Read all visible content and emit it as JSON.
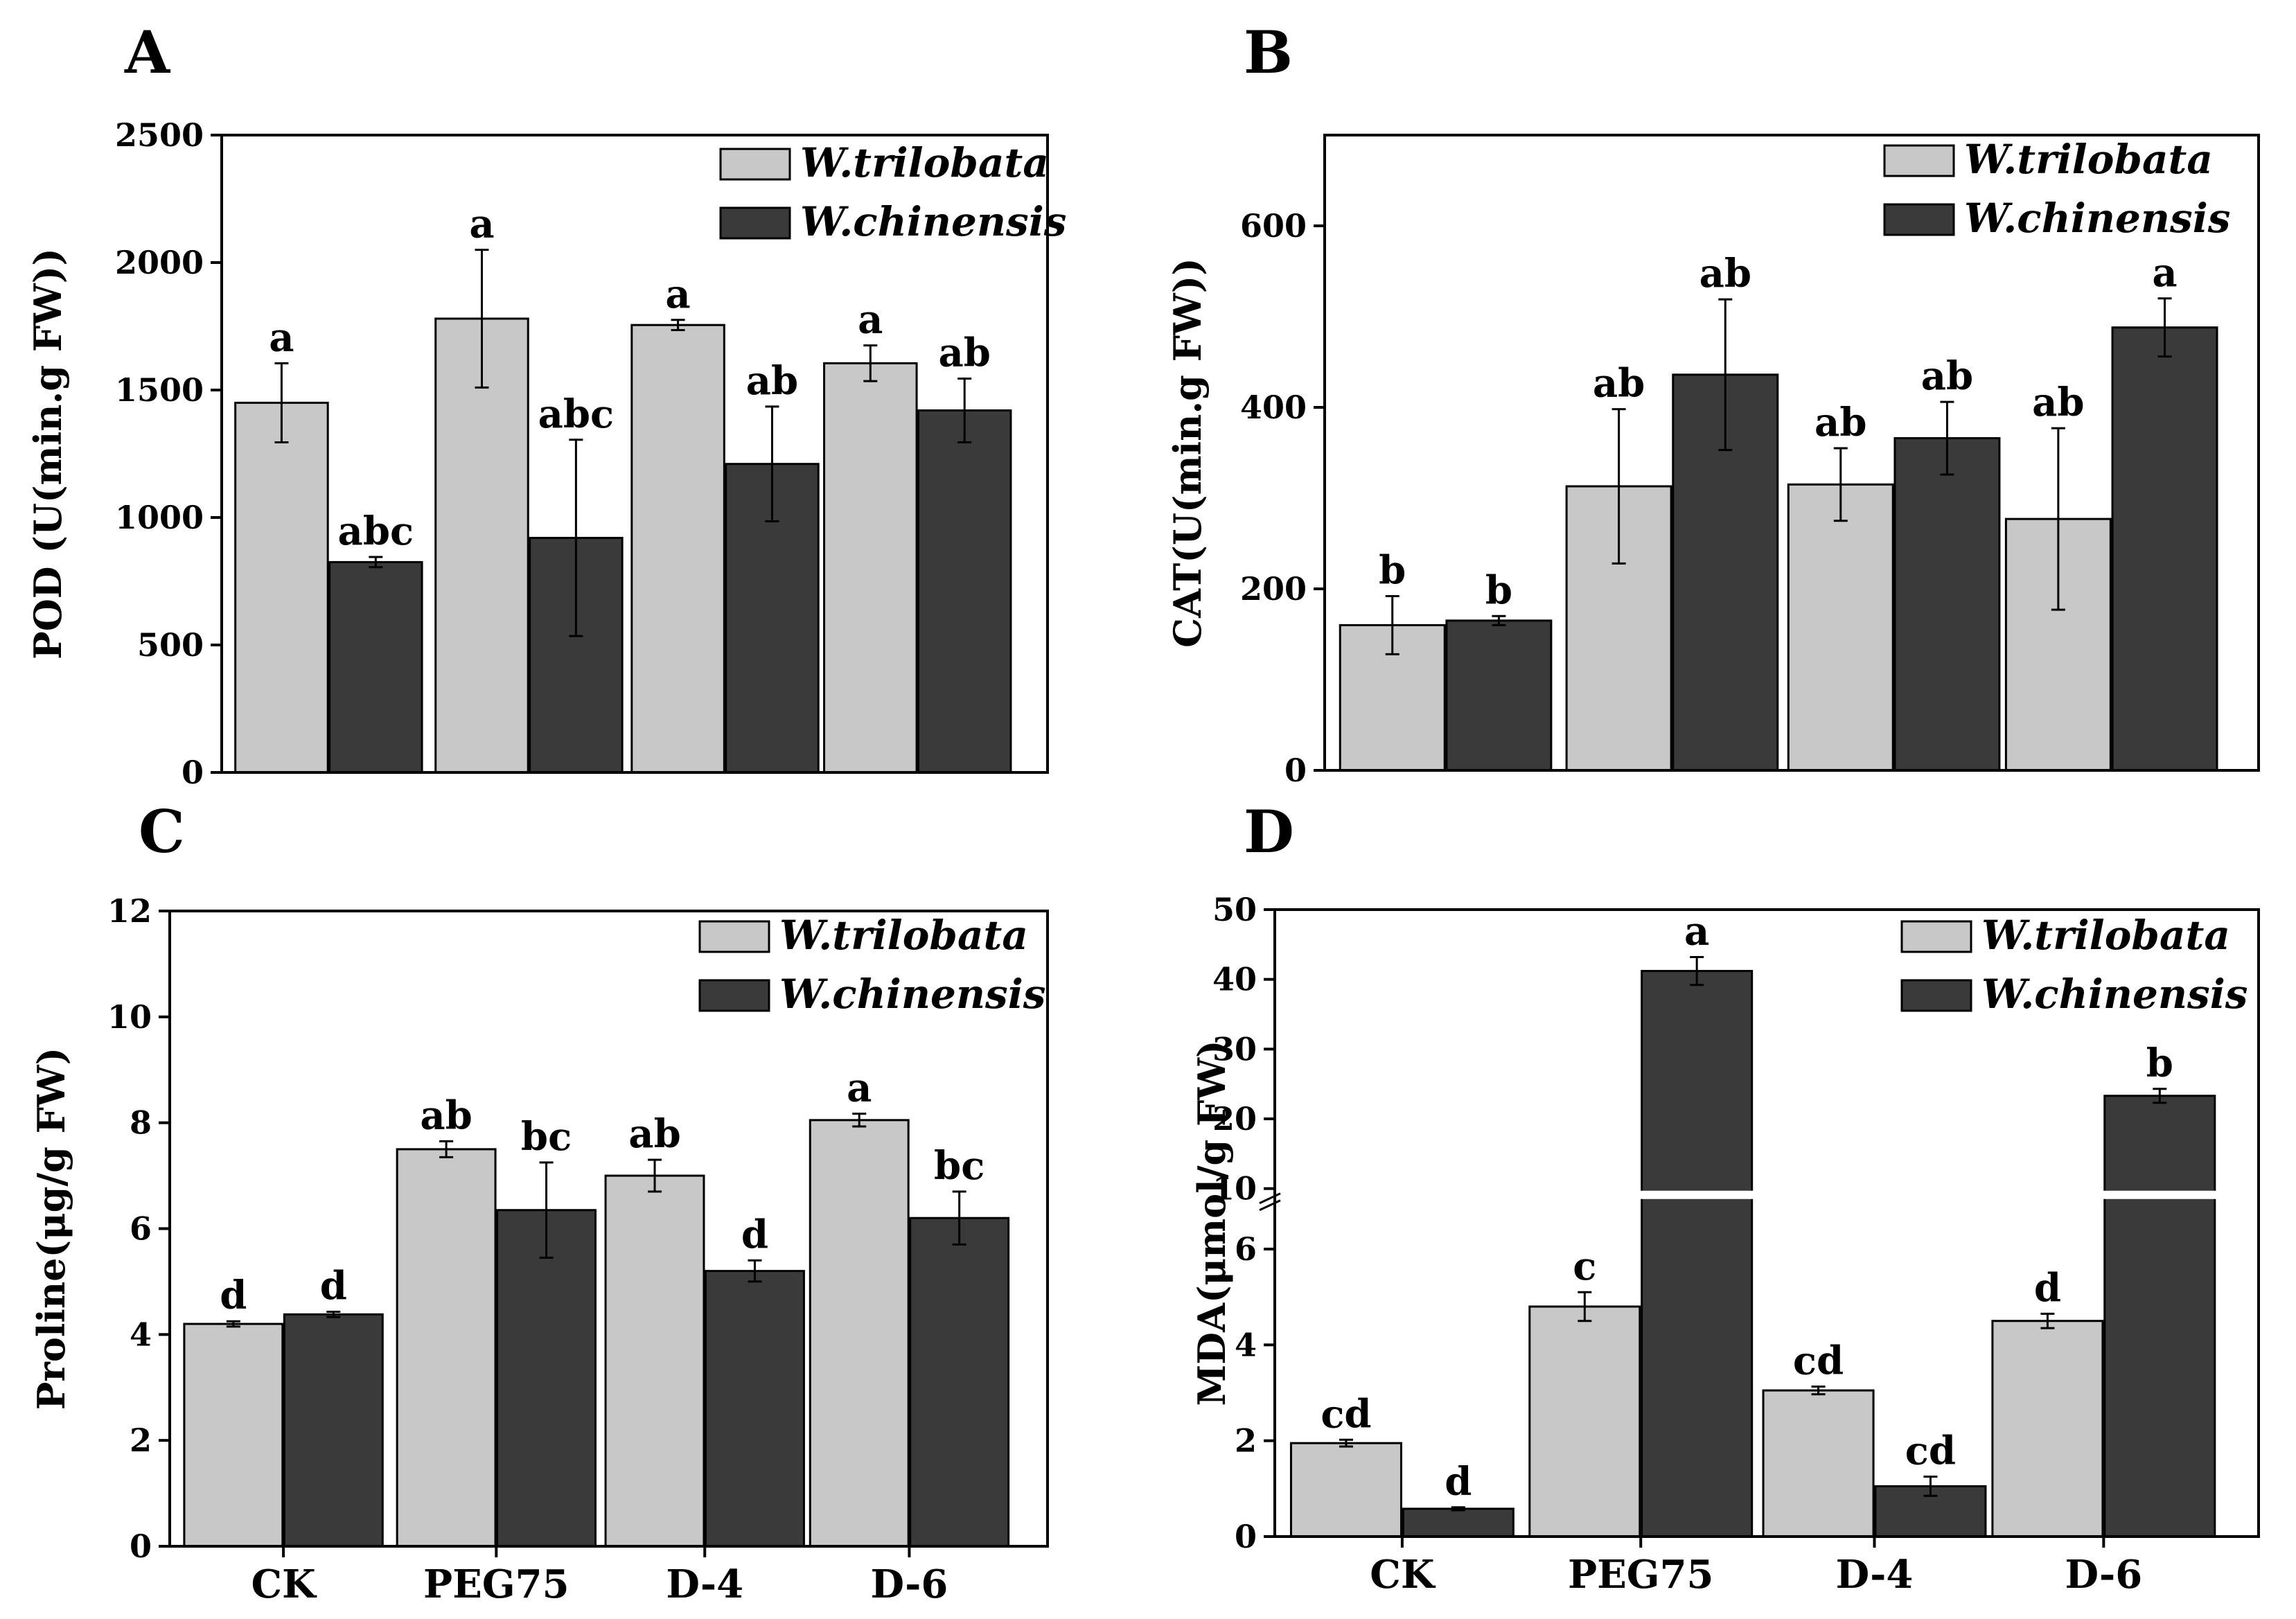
{
  "colors": {
    "trilobata": "#c8c8c8",
    "chinensis": "#3a3a3a",
    "axis": "#000000",
    "break": "#ffffff"
  },
  "chart_data": [
    {
      "type": "bar",
      "panel": "A",
      "ylabel": "POD (U(min.g FW))",
      "categories": [
        "CK",
        "PEG75",
        "D-4",
        "D-6"
      ],
      "show_xticks": false,
      "ylim": [
        0,
        2500
      ],
      "yticks": [
        0,
        500,
        1000,
        1500,
        2000,
        2500
      ],
      "series": [
        {
          "name": "W.trilobata",
          "values": [
            1450,
            1780,
            1755,
            1605
          ],
          "errors": [
            155,
            270,
            20,
            70
          ],
          "labels": [
            "a",
            "a",
            "a",
            "a"
          ]
        },
        {
          "name": "W.chinensis",
          "values": [
            825,
            920,
            1210,
            1420
          ],
          "errors": [
            20,
            385,
            225,
            125
          ],
          "labels": [
            "abc",
            "abc",
            "ab",
            "ab"
          ]
        }
      ],
      "legend": "top-right"
    },
    {
      "type": "bar",
      "panel": "B",
      "ylabel": "CAT(U(min.g FW))",
      "categories": [
        "CK",
        "PEG75",
        "D-4",
        "D-6"
      ],
      "show_xticks": false,
      "ylim": [
        0,
        700
      ],
      "yticks": [
        0,
        200,
        400,
        600
      ],
      "series": [
        {
          "name": "W.trilobata",
          "values": [
            160,
            313,
            315,
            277
          ],
          "errors": [
            32,
            85,
            40,
            100
          ],
          "labels": [
            "b",
            "ab",
            "ab",
            "ab"
          ]
        },
        {
          "name": "W.chinensis",
          "values": [
            165,
            436,
            366,
            488
          ],
          "errors": [
            5,
            83,
            40,
            32
          ],
          "labels": [
            "b",
            "ab",
            "ab",
            "a"
          ]
        }
      ],
      "legend": "top-right"
    },
    {
      "type": "bar",
      "panel": "C",
      "ylabel": "Proline(μg/g FW)",
      "categories": [
        "CK",
        "PEG75",
        "D-4",
        "D-6"
      ],
      "show_xticks": true,
      "ylim": [
        0,
        12
      ],
      "yticks": [
        0,
        2,
        4,
        6,
        8,
        10,
        12
      ],
      "series": [
        {
          "name": "W.trilobata",
          "values": [
            4.2,
            7.5,
            7.0,
            8.05
          ],
          "errors": [
            0.05,
            0.15,
            0.3,
            0.12
          ],
          "labels": [
            "d",
            "ab",
            "ab",
            "a"
          ]
        },
        {
          "name": "W.chinensis",
          "values": [
            4.38,
            6.35,
            5.2,
            6.2
          ],
          "errors": [
            0.05,
            0.9,
            0.2,
            0.5
          ],
          "labels": [
            "d",
            "bc",
            "d",
            "bc"
          ]
        }
      ],
      "legend": "top-right"
    },
    {
      "type": "bar",
      "panel": "D",
      "ylabel": "MDA(μmol/g FW)",
      "categories": [
        "CK",
        "PEG75",
        "D-4",
        "D-6"
      ],
      "show_xticks": true,
      "ylim": [
        0,
        50
      ],
      "y_break": [
        6.5,
        10
      ],
      "yticks": [
        0,
        2,
        4,
        6,
        10,
        20,
        30,
        40,
        50
      ],
      "series": [
        {
          "name": "W.trilobata",
          "values": [
            1.95,
            4.8,
            3.05,
            4.5
          ],
          "errors": [
            0.07,
            0.3,
            0.08,
            0.15
          ],
          "labels": [
            "cd",
            "c",
            "cd",
            "d"
          ]
        },
        {
          "name": "W.chinensis",
          "values": [
            0.58,
            41.2,
            1.05,
            23.3
          ],
          "errors": [
            0.03,
            2.0,
            0.2,
            1.0
          ],
          "labels": [
            "d",
            "a",
            "cd",
            "b"
          ]
        }
      ],
      "legend": "top-right"
    }
  ]
}
